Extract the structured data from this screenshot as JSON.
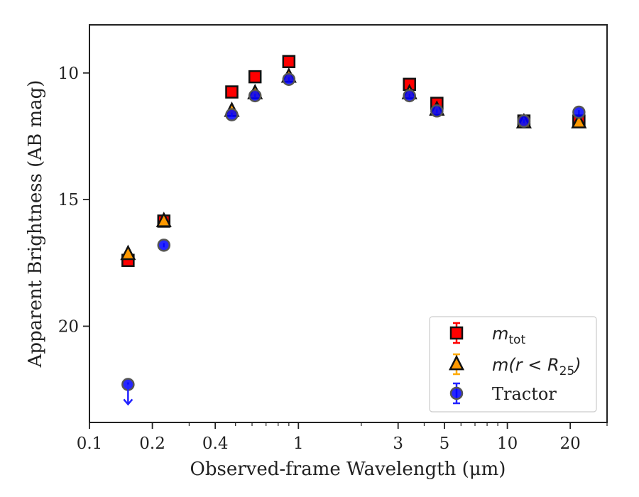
{
  "chart_data": {
    "type": "scatter",
    "xlabel": "Observed-frame Wavelength (μm)",
    "ylabel": "Apparent Brightness (AB mag)",
    "xscale": "log",
    "xlim": [
      0.1,
      30
    ],
    "ylim": [
      23.8,
      8.1
    ],
    "y_inverted": true,
    "x_ticks": [
      {
        "value": 0.1,
        "label": "0.1"
      },
      {
        "value": 0.2,
        "label": "0.2"
      },
      {
        "value": 0.4,
        "label": "0.4"
      },
      {
        "value": 1,
        "label": "1"
      },
      {
        "value": 3,
        "label": "3"
      },
      {
        "value": 5,
        "label": "5"
      },
      {
        "value": 10,
        "label": "10"
      },
      {
        "value": 20,
        "label": "20"
      }
    ],
    "y_ticks": [
      {
        "value": 10,
        "label": "10"
      },
      {
        "value": 15,
        "label": "15"
      },
      {
        "value": 20,
        "label": "20"
      }
    ],
    "grid": false,
    "legend_position": "lower right",
    "series": [
      {
        "name": "m_tot",
        "label_base": "m",
        "label_sub": "tot",
        "marker": "square",
        "color": "#ff0000",
        "edgecolor": "#111111",
        "errcolor": "#ff0000",
        "points": [
          {
            "x": 0.153,
            "y": 17.4
          },
          {
            "x": 0.227,
            "y": 15.85
          },
          {
            "x": 0.48,
            "y": 10.75
          },
          {
            "x": 0.62,
            "y": 10.15
          },
          {
            "x": 0.9,
            "y": 9.55
          },
          {
            "x": 3.4,
            "y": 10.45
          },
          {
            "x": 4.6,
            "y": 11.2
          },
          {
            "x": 12.0,
            "y": 11.9
          },
          {
            "x": 22.0,
            "y": 11.9
          }
        ]
      },
      {
        "name": "m(r < R_25)",
        "label_prefix": "m(r < R",
        "label_sub": "25",
        "label_suffix": ")",
        "marker": "triangle",
        "color": "#ff9900",
        "edgecolor": "#111111",
        "errcolor": "#ffaa00",
        "points": [
          {
            "x": 0.153,
            "y": 17.15
          },
          {
            "x": 0.227,
            "y": 15.85
          },
          {
            "x": 0.48,
            "y": 11.5
          },
          {
            "x": 0.62,
            "y": 10.8
          },
          {
            "x": 0.9,
            "y": 10.15
          },
          {
            "x": 3.4,
            "y": 10.8
          },
          {
            "x": 4.6,
            "y": 11.45
          },
          {
            "x": 12.0,
            "y": 11.95
          },
          {
            "x": 22.0,
            "y": 11.95
          }
        ]
      },
      {
        "name": "Tractor",
        "marker": "circle",
        "color": "#0000ff",
        "edgecolor": "#555555",
        "errcolor": "#2222ff",
        "points": [
          {
            "x": 0.153,
            "y": 22.3,
            "upper_limit": true
          },
          {
            "x": 0.227,
            "y": 16.8
          },
          {
            "x": 0.48,
            "y": 11.65
          },
          {
            "x": 0.62,
            "y": 10.9
          },
          {
            "x": 0.9,
            "y": 10.25
          },
          {
            "x": 3.4,
            "y": 10.9
          },
          {
            "x": 4.6,
            "y": 11.5
          },
          {
            "x": 12.0,
            "y": 11.9
          },
          {
            "x": 22.0,
            "y": 11.55
          }
        ]
      }
    ]
  }
}
